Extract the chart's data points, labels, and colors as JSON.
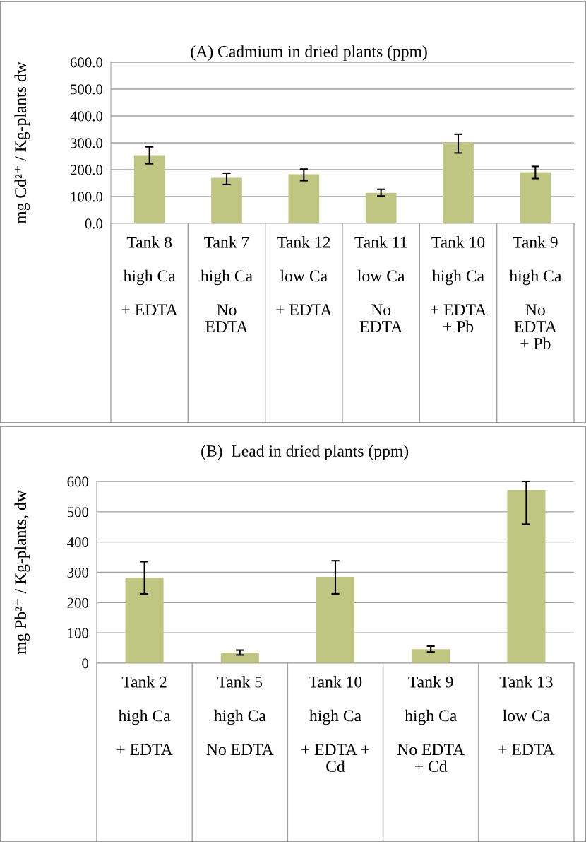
{
  "chart_data": [
    {
      "type": "bar",
      "title": "(A) Cadmium in dried plants (ppm)",
      "ylabel": "mg Cd²⁺ / Kg-plants dw",
      "categories": [
        "Tank 8\n\nhigh Ca\n\n+ EDTA",
        "Tank 7\n\nhigh Ca\n\nNo\nEDTA",
        "Tank 12\n\nlow Ca\n\n+ EDTA",
        "Tank 11\n\nlow Ca\n\nNo\nEDTA",
        "Tank 10\n\nhigh Ca\n\n+ EDTA\n+ Pb",
        "Tank 9\n\nhigh Ca\n\nNo\nEDTA\n+ Pb"
      ],
      "values": [
        254,
        170,
        183,
        114,
        301,
        191
      ],
      "errors": [
        [
          222,
          285
        ],
        [
          145,
          187
        ],
        [
          159,
          202
        ],
        [
          102,
          127
        ],
        [
          262,
          332
        ],
        [
          167,
          212
        ]
      ],
      "color": "#bec682",
      "ylim": [
        0,
        600
      ],
      "yticks": [
        {
          "value": 0,
          "label": "0.0"
        },
        {
          "value": 100,
          "label": "100.0"
        },
        {
          "value": 200,
          "label": "200.0"
        },
        {
          "value": 300,
          "label": "300.0"
        },
        {
          "value": 400,
          "label": "400.0"
        },
        {
          "value": 500,
          "label": "500.0"
        },
        {
          "value": 600,
          "label": "600.0"
        }
      ],
      "grid": "y"
    },
    {
      "type": "bar",
      "title": "(B)  Lead in dried plants (ppm)",
      "ylabel": "mg Pb²⁺ / Kg-plants, dw",
      "categories": [
        "Tank 2\n\nhigh Ca\n\n+ EDTA",
        "Tank 5\n\nhigh Ca\n\nNo EDTA",
        "Tank 10\n\nhigh Ca\n\n+ EDTA +\nCd",
        "Tank 9\n\nhigh Ca\n\nNo EDTA\n+ Cd",
        "Tank 13\n\nlow Ca\n\n+ EDTA"
      ],
      "values": [
        282,
        35,
        285,
        46,
        572
      ],
      "errors": [
        [
          229,
          335
        ],
        [
          27,
          43
        ],
        [
          229,
          338
        ],
        [
          37,
          56
        ],
        [
          459,
          600
        ]
      ],
      "color": "#bec682",
      "ylim": [
        0,
        600
      ],
      "yticks": [
        0,
        100,
        200,
        300,
        400,
        500,
        600
      ],
      "grid": "y"
    }
  ]
}
